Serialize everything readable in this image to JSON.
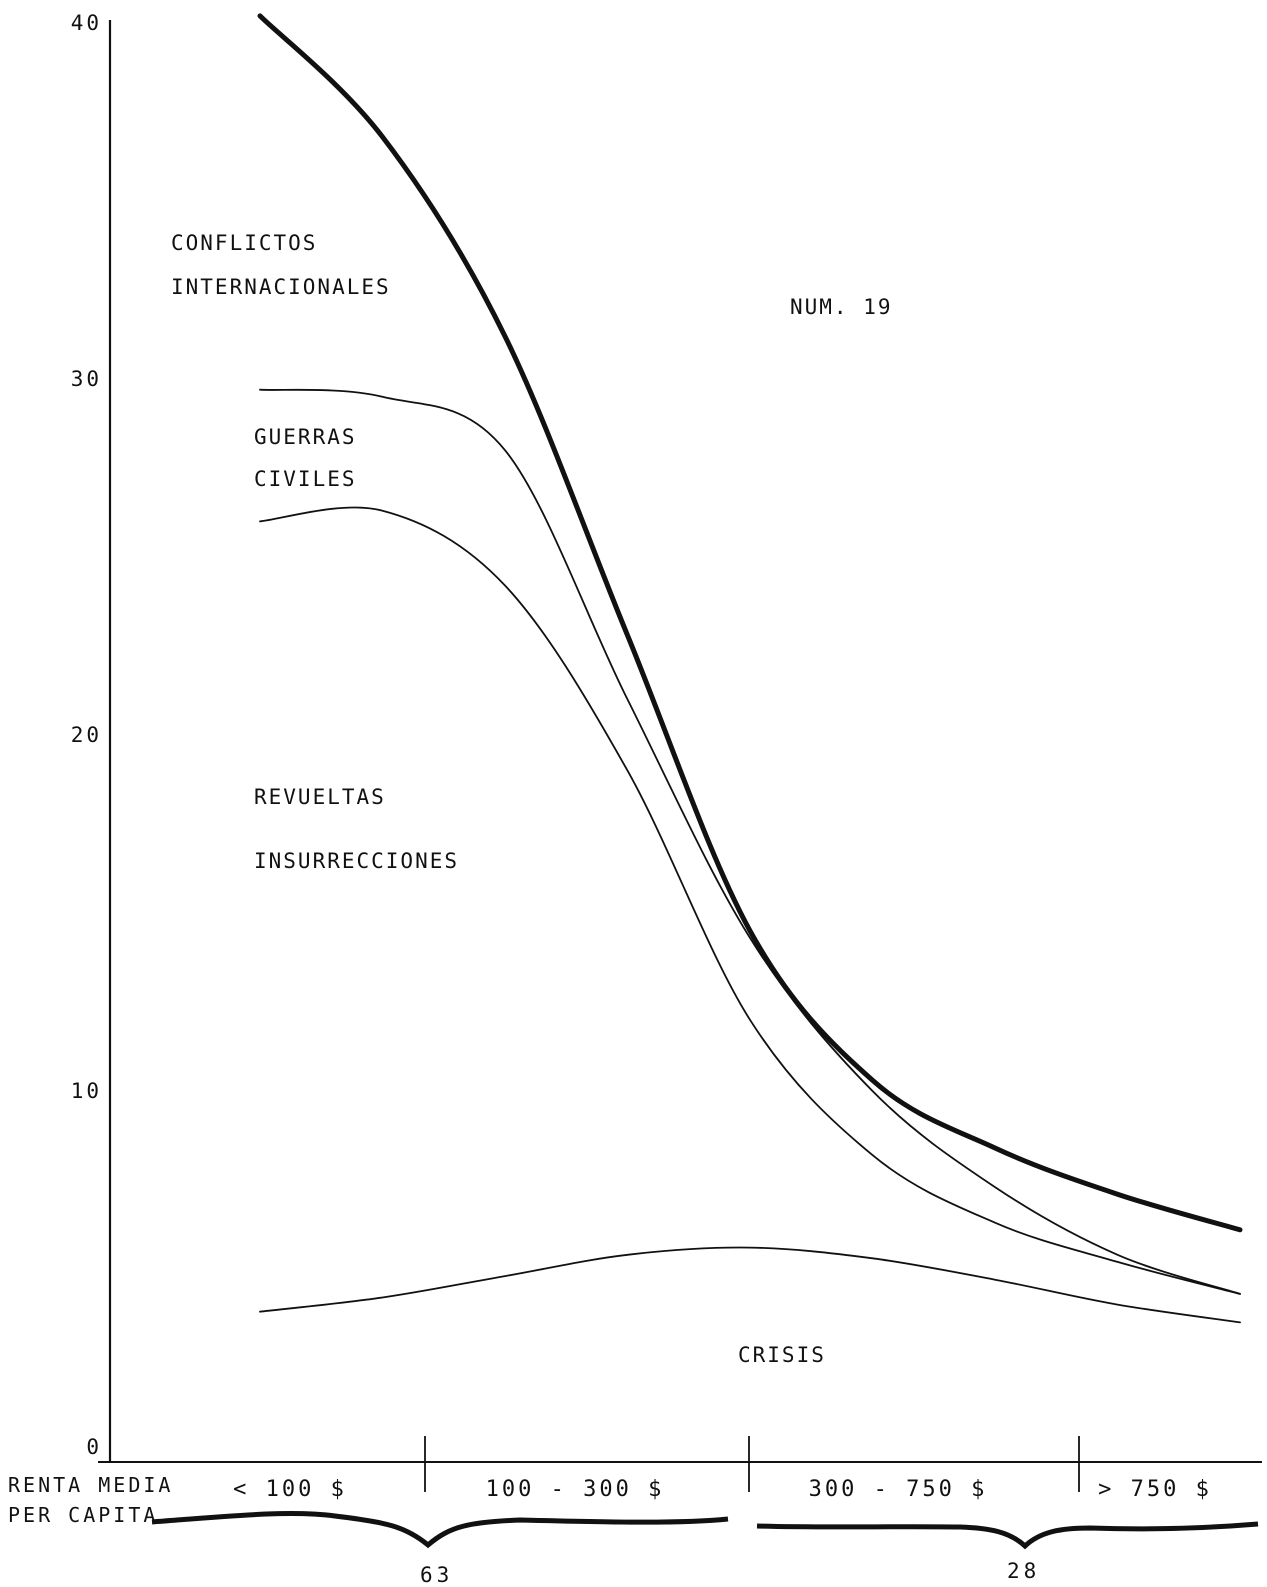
{
  "chart_data": {
    "type": "area",
    "title": "",
    "annotation": "NUM. 19",
    "xlabel": [
      "RENTA MEDIA",
      "PER CAPITA"
    ],
    "ylabel": "",
    "ylim": [
      0,
      40
    ],
    "yticks": [
      "0",
      "10",
      "20",
      "30",
      "40"
    ],
    "categories": [
      "< 100 $",
      "100 - 300 $",
      "300 - 750 $",
      "> 750 $"
    ],
    "x": [
      0,
      0.5,
      1,
      1.5,
      2,
      2.5,
      3,
      3.5,
      4
    ],
    "series": [
      {
        "name": "CONFLICTOS INTERNACIONALES",
        "values": [
          40.2,
          36.8,
          31.2,
          22.8,
          14.5,
          10.3,
          8.4,
          7.1,
          6.1
        ],
        "weight": "bold"
      },
      {
        "name": "GUERRAS CIVILES",
        "values": [
          29.7,
          29.5,
          28.0,
          21.0,
          14.3,
          10.0,
          7.3,
          5.4,
          4.3
        ],
        "weight": "thin"
      },
      {
        "name": "REVUELTAS INSURRECCIONES",
        "values": [
          26.0,
          26.3,
          24.2,
          19.0,
          12.0,
          8.2,
          6.3,
          5.2,
          4.3
        ],
        "weight": "thin"
      },
      {
        "name": "CRISIS",
        "values": [
          3.8,
          4.2,
          4.8,
          5.4,
          5.6,
          5.3,
          4.7,
          4.0,
          3.5
        ],
        "weight": "thin"
      }
    ],
    "region_labels": [
      [
        "CONFLICTOS",
        "INTERNACIONALES"
      ],
      [
        "GUERRAS",
        "CIVILES"
      ],
      [
        "REVUELTAS",
        "INSURRECCIONES"
      ],
      [
        "CRISIS"
      ]
    ],
    "group_counts": [
      "63",
      "28"
    ],
    "grid": false,
    "legend": "none"
  }
}
